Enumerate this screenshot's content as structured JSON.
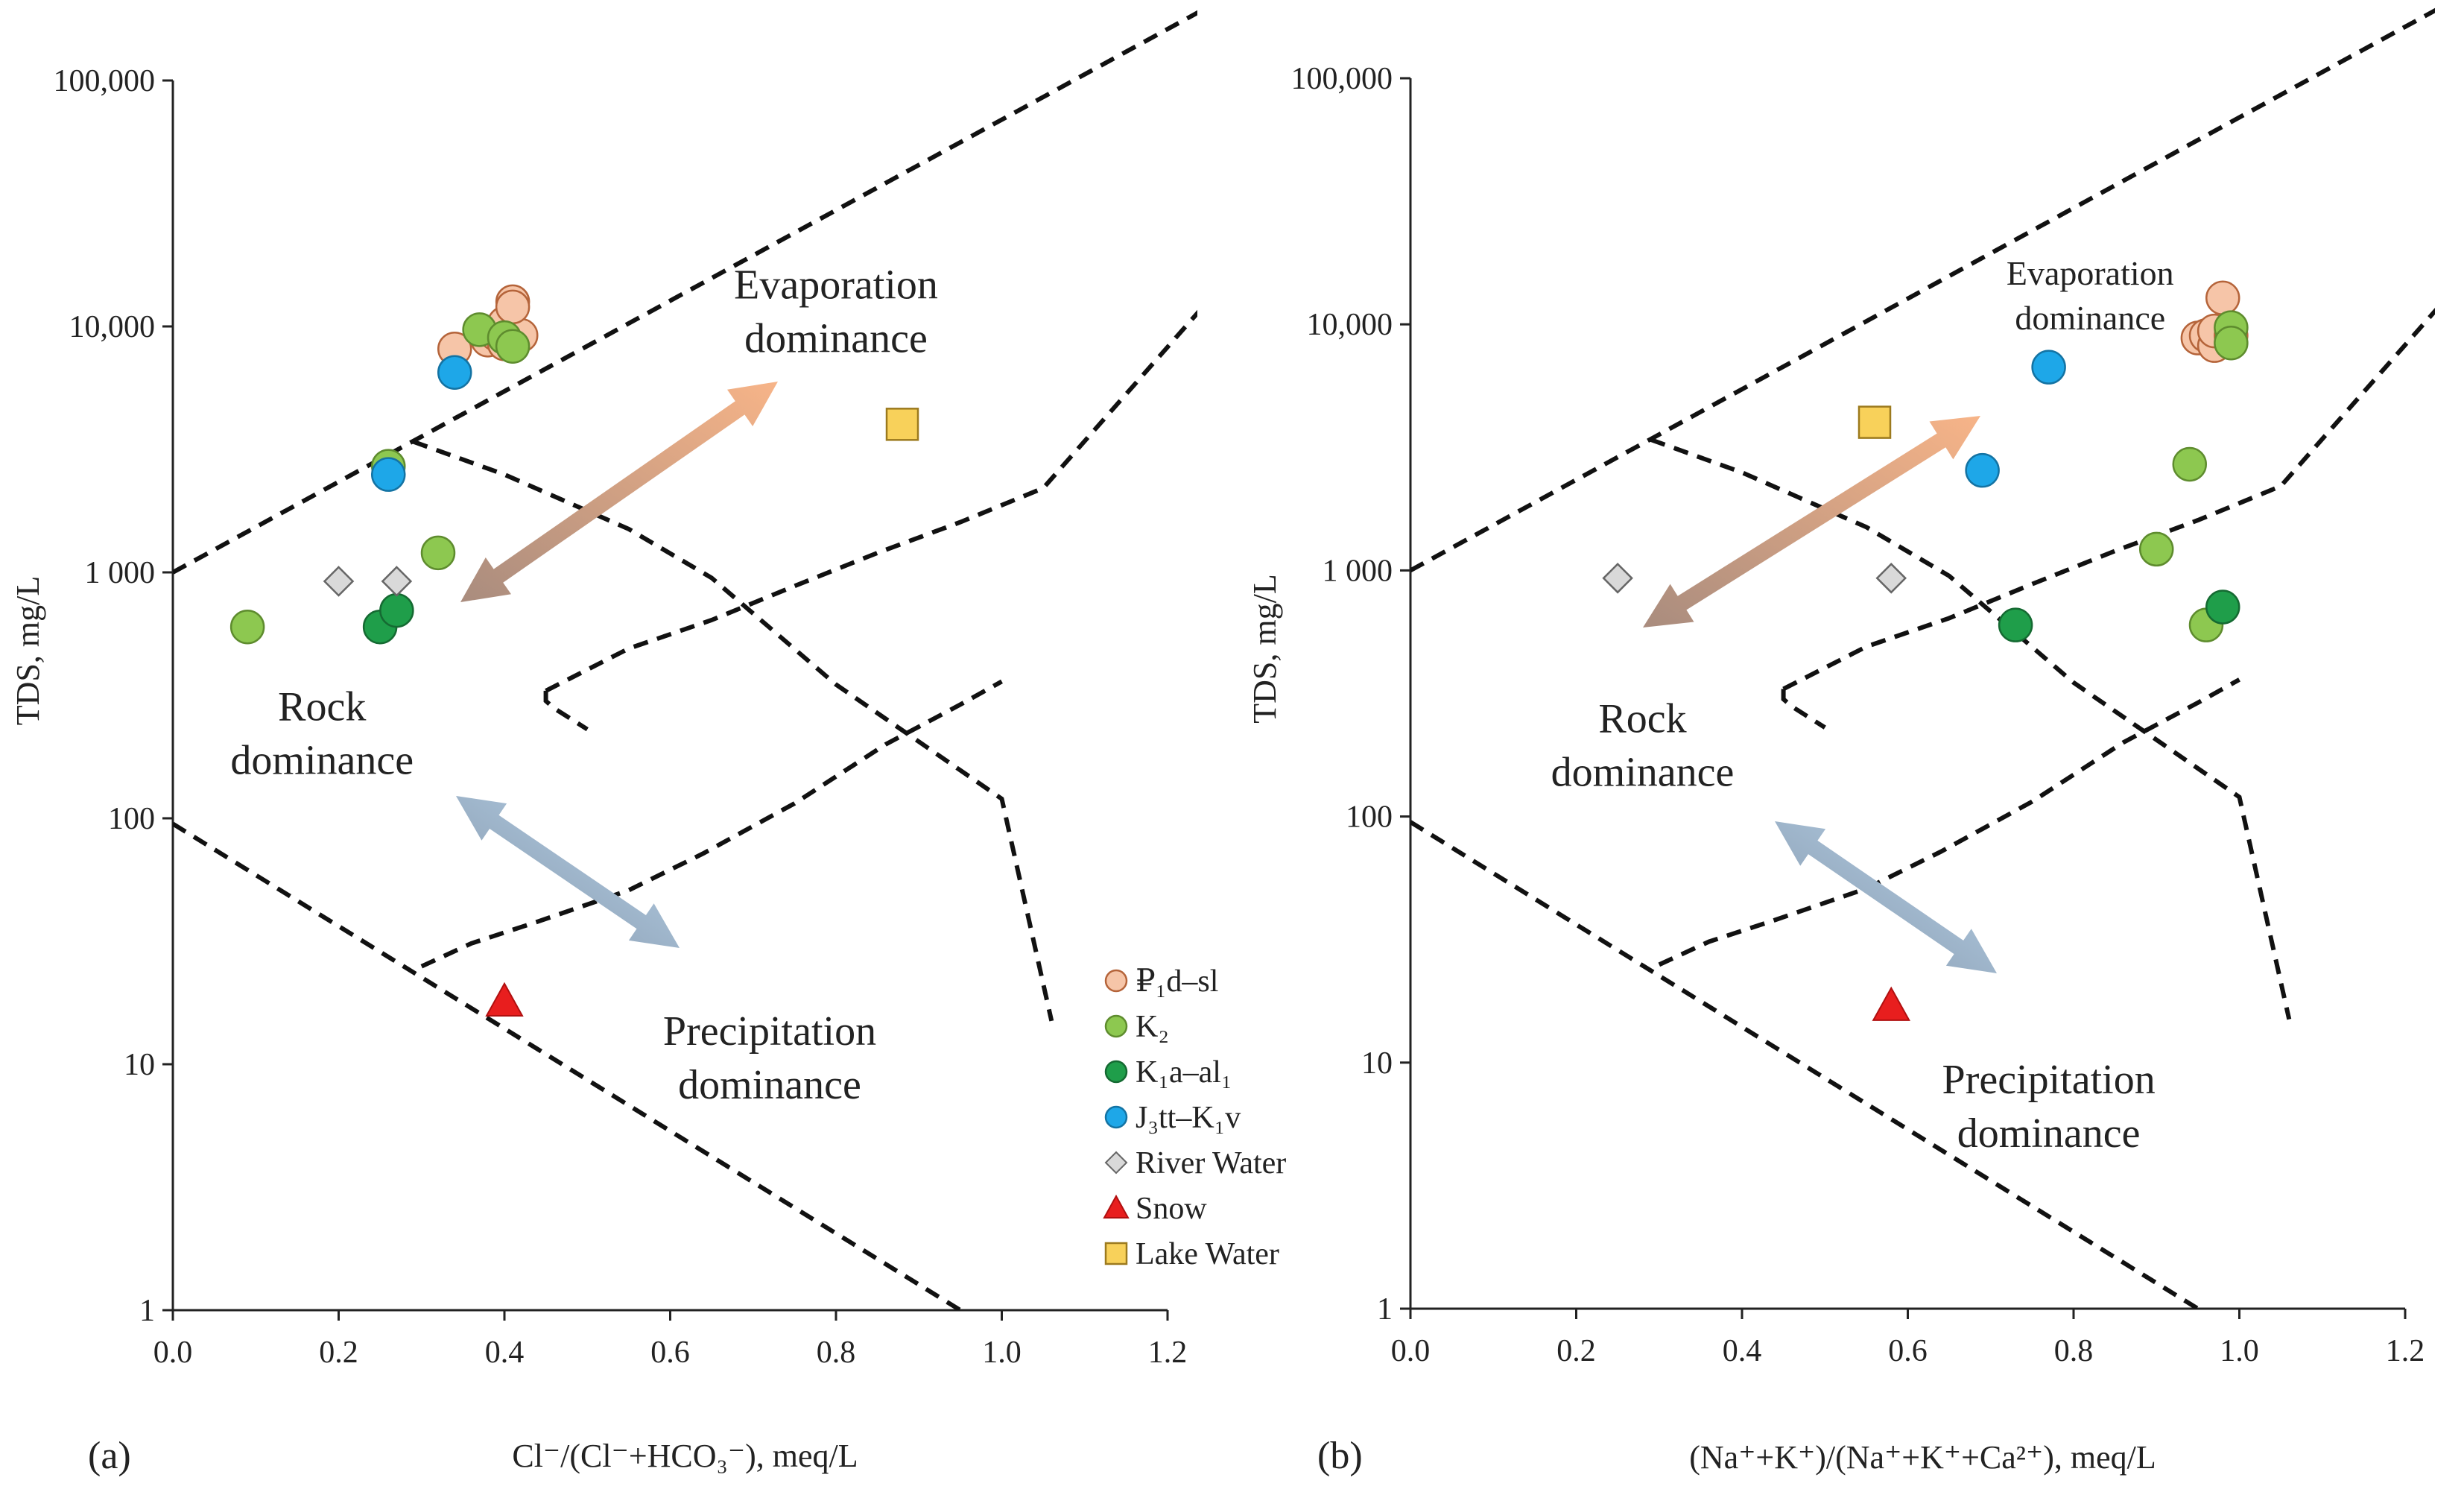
{
  "chart_data": [
    {
      "type": "scatter",
      "panel_label": "(a)",
      "xlabel": "Cl⁻/(Cl⁻+HCO₃⁻), meq/L",
      "ylabel": "TDS, mg/L",
      "xlim": [
        0.0,
        1.2
      ],
      "ylim": [
        1,
        100000
      ],
      "yscale": "log",
      "x_ticks": [
        "0.0",
        "0.2",
        "0.4",
        "0.6",
        "0.8",
        "1.0",
        "1.2"
      ],
      "y_ticks": [
        "1",
        "10",
        "100",
        "1 000",
        "10,000",
        "100,000"
      ],
      "region_labels": [
        {
          "lines": [
            "Evaporation",
            "dominance"
          ],
          "x": 0.8,
          "y": 13000
        },
        {
          "lines": [
            "Rock",
            "dominance"
          ],
          "x": 0.18,
          "y": 250
        },
        {
          "lines": [
            "Precipitation",
            "dominance"
          ],
          "x": 0.72,
          "y": 12
        }
      ],
      "series": [
        {
          "name": "₽₁d–sl",
          "marker": "circle",
          "color": "#F6C5A8",
          "edge": "#B5643A",
          "points": [
            [
              0.34,
              8100
            ],
            [
              0.38,
              8800
            ],
            [
              0.39,
              9300
            ],
            [
              0.4,
              8500
            ],
            [
              0.4,
              10300
            ],
            [
              0.41,
              12600
            ],
            [
              0.42,
              9200
            ],
            [
              0.41,
              12000
            ]
          ]
        },
        {
          "name": "K₂",
          "marker": "circle",
          "color": "#8DC850",
          "edge": "#5E8C2E",
          "points": [
            [
              0.09,
              600
            ],
            [
              0.26,
              2700
            ],
            [
              0.32,
              1200
            ],
            [
              0.37,
              9700
            ],
            [
              0.4,
              9000
            ],
            [
              0.41,
              8300
            ]
          ]
        },
        {
          "name": "K₁a–al₁",
          "marker": "circle",
          "color": "#1F9E4A",
          "edge": "#156A32",
          "points": [
            [
              0.25,
              600
            ],
            [
              0.27,
              700
            ]
          ]
        },
        {
          "name": "J₃tt–K₁v",
          "marker": "circle",
          "color": "#1EA7E8",
          "edge": "#1473A3",
          "points": [
            [
              0.26,
              2500
            ],
            [
              0.34,
              6500
            ]
          ]
        },
        {
          "name": "River Water",
          "marker": "diamond",
          "color": "#D9D9D9",
          "edge": "#666666",
          "points": [
            [
              0.2,
              920
            ],
            [
              0.27,
              920
            ]
          ]
        },
        {
          "name": "Snow",
          "marker": "triangle",
          "color": "#E81E1E",
          "edge": "#B01010",
          "points": [
            [
              0.4,
              18
            ]
          ]
        },
        {
          "name": "Lake Water",
          "marker": "square",
          "color": "#F8D15A",
          "edge": "#9C7A1E",
          "points": [
            [
              0.88,
              4000
            ]
          ]
        }
      ]
    },
    {
      "type": "scatter",
      "panel_label": "(b)",
      "xlabel": "(Na⁺+K⁺)/(Na⁺+K⁺+Ca²⁺), meq/L",
      "ylabel": "TDS, mg/L",
      "xlim": [
        0.0,
        1.2
      ],
      "ylim": [
        1,
        100000
      ],
      "yscale": "log",
      "x_ticks": [
        "0.0",
        "0.2",
        "0.4",
        "0.6",
        "0.8",
        "1.0",
        "1.2"
      ],
      "y_ticks": [
        "1",
        "10",
        "100",
        "1 000",
        "10,000",
        "100,000"
      ],
      "region_labels": [
        {
          "lines": [
            "Evaporation",
            "dominance"
          ],
          "x": 0.82,
          "y": 14500
        },
        {
          "lines": [
            "Rock",
            "dominance"
          ],
          "x": 0.28,
          "y": 220
        },
        {
          "lines": [
            "Precipitation",
            "dominance"
          ],
          "x": 0.77,
          "y": 7.5
        }
      ],
      "series": [
        {
          "name": "₽₁d–sl",
          "marker": "circle",
          "color": "#F6C5A8",
          "edge": "#B5643A",
          "points": [
            [
              0.95,
              8800
            ],
            [
              0.96,
              9000
            ],
            [
              0.97,
              8200
            ],
            [
              0.97,
              9400
            ],
            [
              0.98,
              12800
            ],
            [
              0.99,
              9000
            ]
          ]
        },
        {
          "name": "K₂",
          "marker": "circle",
          "color": "#8DC850",
          "edge": "#5E8C2E",
          "points": [
            [
              0.9,
              1220
            ],
            [
              0.94,
              2700
            ],
            [
              0.96,
              600
            ],
            [
              0.99,
              9700
            ],
            [
              0.99,
              8400
            ]
          ]
        },
        {
          "name": "K₁a–al₁",
          "marker": "circle",
          "color": "#1F9E4A",
          "edge": "#156A32",
          "points": [
            [
              0.73,
              600
            ],
            [
              0.98,
              710
            ]
          ]
        },
        {
          "name": "J₃tt–K₁v",
          "marker": "circle",
          "color": "#1EA7E8",
          "edge": "#1473A3",
          "points": [
            [
              0.69,
              2550
            ],
            [
              0.77,
              6700
            ]
          ]
        },
        {
          "name": "River Water",
          "marker": "diamond",
          "color": "#D9D9D9",
          "edge": "#666666",
          "points": [
            [
              0.25,
              930
            ],
            [
              0.58,
              930
            ]
          ]
        },
        {
          "name": "Snow",
          "marker": "triangle",
          "color": "#E81E1E",
          "edge": "#B01010",
          "points": [
            [
              0.58,
              17
            ]
          ]
        },
        {
          "name": "Lake Water",
          "marker": "square",
          "color": "#F8D15A",
          "edge": "#9C7A1E",
          "points": [
            [
              0.56,
              4000
            ]
          ]
        }
      ]
    }
  ]
}
